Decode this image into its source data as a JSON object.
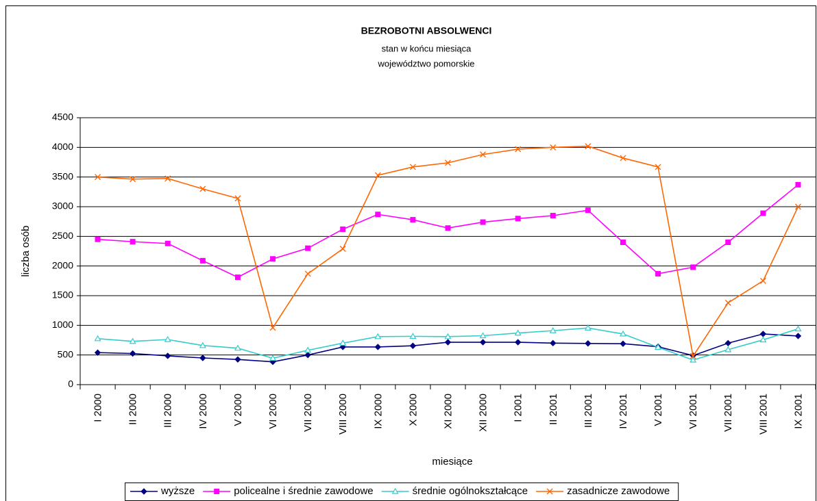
{
  "chart_data": {
    "type": "line",
    "title": "BEZROBOTNI  ABSOLWENCI",
    "subtitle": [
      "stan w końcu miesiąca",
      "województwo pomorskie"
    ],
    "x_label": "miesiące",
    "y_label": "liczba osób",
    "categories": [
      "I 2000",
      "II 2000",
      "III 2000",
      "IV 2000",
      "V 2000",
      "VI 2000",
      "VII 2000",
      "VIII 2000",
      "IX 2000",
      "X 2000",
      "XI 2000",
      "XII 2000",
      "I 2001",
      "II 2001",
      "III 2001",
      "IV 2001",
      "V 2001",
      "VI 2001",
      "VII 2001",
      "VIII 2001",
      "IX 2001"
    ],
    "series": [
      {
        "name": "wyższe",
        "color": "#000080",
        "marker": "diamond",
        "values": [
          540,
          525,
          485,
          450,
          425,
          385,
          500,
          635,
          635,
          655,
          715,
          715,
          715,
          700,
          695,
          690,
          640,
          490,
          700,
          855,
          820
        ]
      },
      {
        "name": "policealne i średnie zawodowe",
        "color": "#ff00ff",
        "marker": "square",
        "values": [
          2450,
          2410,
          2380,
          2090,
          1810,
          2120,
          2300,
          2620,
          2870,
          2780,
          2640,
          2740,
          2800,
          2850,
          2940,
          2400,
          1870,
          1980,
          2400,
          2890,
          3370
        ]
      },
      {
        "name": "średnie ogólnokształcące",
        "color": "#33cccc",
        "marker": "triangle",
        "values": [
          775,
          730,
          760,
          660,
          615,
          445,
          580,
          700,
          810,
          815,
          810,
          825,
          870,
          910,
          955,
          855,
          630,
          415,
          590,
          755,
          940
        ]
      },
      {
        "name": "zasadnicze zawodowe",
        "color": "#ff6600",
        "marker": "x",
        "values": [
          3500,
          3465,
          3475,
          3300,
          3140,
          960,
          1870,
          2290,
          3530,
          3670,
          3740,
          3880,
          3970,
          4000,
          4020,
          3820,
          3670,
          480,
          1380,
          1750,
          3000
        ]
      }
    ],
    "ylim": [
      0,
      4500
    ],
    "yticks": [
      0,
      500,
      1000,
      1500,
      2000,
      2500,
      3000,
      3500,
      4000,
      4500
    ],
    "grid": true,
    "legend": "bottom"
  }
}
